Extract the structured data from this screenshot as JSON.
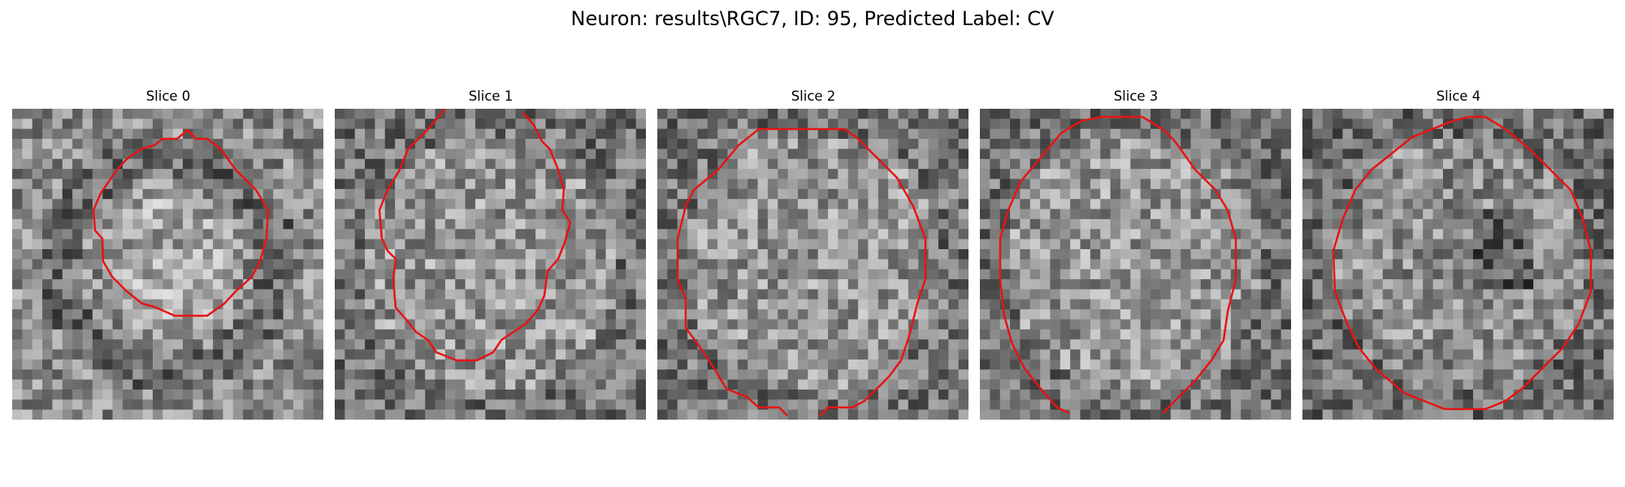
{
  "figure": {
    "title": "Neuron: results\\RGC7, ID: 95, Predicted Label: CV",
    "contour_color": "#e81313",
    "image_colormap": "grayscale"
  },
  "panels": [
    {
      "title": "Slice 0"
    },
    {
      "title": "Slice 1"
    },
    {
      "title": "Slice 2"
    },
    {
      "title": "Slice 3"
    },
    {
      "title": "Slice 4"
    }
  ]
}
